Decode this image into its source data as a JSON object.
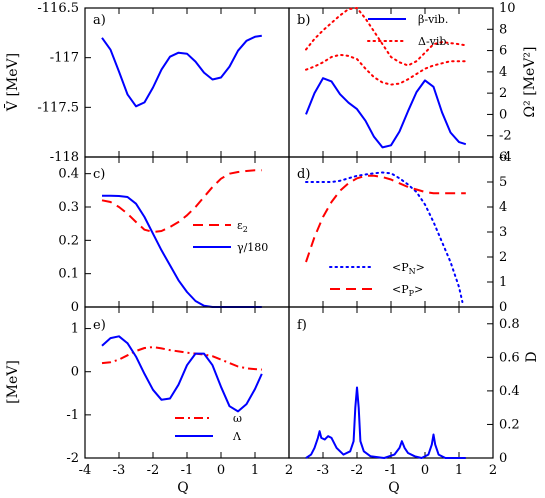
{
  "chart_data": [
    {
      "panel": "a)",
      "type": "line",
      "ylabel": "V̄ [MeV]",
      "xlim": [
        -4,
        2
      ],
      "ylim": [
        -118,
        -116.5
      ],
      "yticks": [
        "-116.5",
        "-117",
        "-117.5",
        "-118"
      ],
      "series": [
        {
          "name": "",
          "color": "#0000ff",
          "style": "solid",
          "x": [
            -3.5,
            -3.25,
            -3.0,
            -2.75,
            -2.5,
            -2.25,
            -2.0,
            -1.75,
            -1.5,
            -1.25,
            -1.0,
            -0.75,
            -0.5,
            -0.25,
            0.0,
            0.25,
            0.5,
            0.75,
            1.0,
            1.2
          ],
          "y": [
            -116.8,
            -116.92,
            -117.14,
            -117.37,
            -117.49,
            -117.45,
            -117.3,
            -117.12,
            -116.99,
            -116.95,
            -116.96,
            -117.04,
            -117.15,
            -117.22,
            -117.2,
            -117.09,
            -116.93,
            -116.83,
            -116.79,
            -116.78
          ]
        }
      ]
    },
    {
      "panel": "b)",
      "type": "line",
      "ylabel": "Ω² [MeV²]",
      "xlim": [
        -4,
        2
      ],
      "ylim": [
        -4,
        10
      ],
      "yticks": [
        "-4",
        "-2",
        "0",
        "2",
        "4",
        "6",
        "8",
        "10"
      ],
      "legend_position": "top-right",
      "series": [
        {
          "name": "β-vib.",
          "color": "#0000ff",
          "style": "solid",
          "x": [
            -3.5,
            -3.25,
            -3.0,
            -2.75,
            -2.5,
            -2.25,
            -2.0,
            -1.75,
            -1.5,
            -1.25,
            -1.0,
            -0.75,
            -0.5,
            -0.25,
            0.0,
            0.25,
            0.5,
            0.75,
            1.0,
            1.2
          ],
          "y": [
            0.0,
            2.0,
            3.4,
            3.1,
            1.9,
            1.1,
            0.5,
            -0.6,
            -2.1,
            -3.1,
            -2.9,
            -1.6,
            0.3,
            2.1,
            3.2,
            2.6,
            0.2,
            -1.7,
            -2.6,
            -2.8
          ]
        },
        {
          "name": "Δ-vib.",
          "color": "#ff0000",
          "style": "dotted",
          "x": [
            -3.5,
            -3.25,
            -3.0,
            -2.75,
            -2.5,
            -2.25,
            -2.0,
            -1.75,
            -1.5,
            -1.25,
            -1.0,
            -0.75,
            -0.5,
            -0.25,
            0.0,
            0.25,
            0.5,
            0.75,
            1.0,
            1.2
          ],
          "y": [
            6.1,
            7.1,
            7.9,
            8.6,
            9.3,
            9.9,
            10.0,
            9.0,
            7.8,
            6.6,
            5.4,
            4.9,
            4.6,
            5.0,
            5.8,
            6.6,
            6.8,
            6.7,
            6.6,
            6.5
          ]
        },
        {
          "name": "",
          "color": "#ff0000",
          "style": "dotted",
          "x": [
            -3.5,
            -3.25,
            -3.0,
            -2.75,
            -2.5,
            -2.25,
            -2.0,
            -1.75,
            -1.5,
            -1.25,
            -1.0,
            -0.75,
            -0.5,
            -0.25,
            0.0,
            0.25,
            0.5,
            0.75,
            1.0,
            1.2
          ],
          "y": [
            4.2,
            4.5,
            4.9,
            5.4,
            5.6,
            5.5,
            5.2,
            4.3,
            3.5,
            3.0,
            2.8,
            2.9,
            3.3,
            3.8,
            4.3,
            4.6,
            4.8,
            5.0,
            5.0,
            5.0
          ]
        }
      ]
    },
    {
      "panel": "c)",
      "type": "line",
      "xlim": [
        -4,
        2
      ],
      "ylim": [
        0,
        0.45
      ],
      "yticks": [
        "0",
        "0.1",
        "0.2",
        "0.3",
        "0.4"
      ],
      "legend_position": "right",
      "series": [
        {
          "name": "ε₂",
          "color": "#ff0000",
          "style": "dashed",
          "x": [
            -3.5,
            -3.25,
            -3.0,
            -2.75,
            -2.5,
            -2.25,
            -2.0,
            -1.75,
            -1.5,
            -1.25,
            -1.0,
            -0.75,
            -0.5,
            -0.25,
            0.0,
            0.25,
            0.5,
            0.75,
            1.0,
            1.2
          ],
          "y": [
            0.32,
            0.315,
            0.3,
            0.28,
            0.255,
            0.232,
            0.225,
            0.228,
            0.24,
            0.255,
            0.275,
            0.3,
            0.33,
            0.36,
            0.385,
            0.4,
            0.405,
            0.408,
            0.41,
            0.41
          ]
        },
        {
          "name": "γ/180",
          "color": "#0000ff",
          "style": "solid",
          "x": [
            -3.5,
            -3.25,
            -3.0,
            -2.75,
            -2.5,
            -2.25,
            -2.0,
            -1.75,
            -1.5,
            -1.25,
            -1.0,
            -0.75,
            -0.5,
            -0.25,
            0.0,
            0.25,
            0.5,
            0.75,
            1.0,
            1.2
          ],
          "y": [
            0.334,
            0.334,
            0.333,
            0.33,
            0.31,
            0.27,
            0.22,
            0.17,
            0.125,
            0.08,
            0.045,
            0.018,
            0.004,
            0.0,
            0.0,
            0.0,
            0.0,
            0.0,
            0.0,
            0.0
          ]
        }
      ]
    },
    {
      "panel": "d)",
      "type": "line",
      "xlim": [
        -4,
        2
      ],
      "ylim": [
        0,
        6
      ],
      "yticks": [
        "0",
        "1",
        "2",
        "3",
        "4",
        "5",
        "6"
      ],
      "legend_position": "bottom-left",
      "series": [
        {
          "name": "<P_N>",
          "color": "#0000ff",
          "style": "dotted",
          "x": [
            -3.5,
            -3.25,
            -3.0,
            -2.75,
            -2.5,
            -2.25,
            -2.0,
            -1.75,
            -1.5,
            -1.25,
            -1.0,
            -0.75,
            -0.5,
            -0.25,
            0.0,
            0.25,
            0.5,
            0.75,
            1.0,
            1.1
          ],
          "y": [
            5.0,
            5.0,
            5.0,
            5.0,
            5.05,
            5.15,
            5.25,
            5.3,
            5.35,
            5.38,
            5.35,
            5.15,
            4.9,
            4.6,
            4.1,
            3.4,
            2.6,
            1.8,
            0.8,
            0.2
          ]
        },
        {
          "name": "<P_P>",
          "color": "#ff0000",
          "style": "dashed",
          "x": [
            -3.5,
            -3.25,
            -3.0,
            -2.75,
            -2.5,
            -2.25,
            -2.0,
            -1.75,
            -1.5,
            -1.25,
            -1.0,
            -0.75,
            -0.5,
            -0.25,
            0.0,
            0.25,
            0.5,
            0.75,
            1.0,
            1.2
          ],
          "y": [
            1.8,
            2.8,
            3.6,
            4.2,
            4.65,
            4.95,
            5.15,
            5.25,
            5.25,
            5.2,
            5.1,
            4.95,
            4.8,
            4.7,
            4.6,
            4.55,
            4.55,
            4.55,
            4.55,
            4.55
          ]
        }
      ]
    },
    {
      "panel": "e)",
      "type": "line",
      "xlabel": "Q",
      "ylabel": "[MeV]",
      "xlim": [
        -4,
        2
      ],
      "ylim": [
        -2,
        1.5
      ],
      "yticks": [
        "1",
        "0",
        "-1",
        "-2"
      ],
      "xticks": [
        "-4",
        "-3",
        "-2",
        "-1",
        "0",
        "1",
        "2"
      ],
      "legend_position": "bottom-right",
      "series": [
        {
          "name": "ω",
          "color": "#ff0000",
          "style": "dashdot",
          "x": [
            -3.5,
            -3.25,
            -3.0,
            -2.75,
            -2.5,
            -2.25,
            -2.0,
            -1.75,
            -1.5,
            -1.25,
            -1.0,
            -0.75,
            -0.5,
            -0.25,
            0.0,
            0.25,
            0.5,
            0.75,
            1.0,
            1.2
          ],
          "y": [
            0.2,
            0.22,
            0.28,
            0.38,
            0.48,
            0.55,
            0.57,
            0.54,
            0.5,
            0.47,
            0.44,
            0.42,
            0.4,
            0.36,
            0.28,
            0.2,
            0.12,
            0.08,
            0.06,
            0.05
          ]
        },
        {
          "name": "Λ",
          "color": "#0000ff",
          "style": "solid",
          "x": [
            -3.5,
            -3.25,
            -3.0,
            -2.75,
            -2.5,
            -2.25,
            -2.0,
            -1.75,
            -1.5,
            -1.25,
            -1.0,
            -0.75,
            -0.5,
            -0.25,
            0.0,
            0.25,
            0.5,
            0.75,
            1.0,
            1.2
          ],
          "y": [
            0.6,
            0.78,
            0.82,
            0.66,
            0.35,
            -0.05,
            -0.42,
            -0.65,
            -0.62,
            -0.3,
            0.15,
            0.42,
            0.42,
            0.15,
            -0.35,
            -0.8,
            -0.92,
            -0.75,
            -0.4,
            -0.05
          ]
        }
      ]
    },
    {
      "panel": "f)",
      "type": "line",
      "xlabel": "Q",
      "ylabel": "D",
      "xlim": [
        -4,
        2
      ],
      "ylim": [
        0,
        0.9
      ],
      "yticks": [
        "0",
        "0.2",
        "0.4",
        "0.6",
        "0.8"
      ],
      "xticks": [
        "-3",
        "-2",
        "-1",
        "0",
        "1",
        "2"
      ],
      "series": [
        {
          "name": "",
          "color": "#0000ff",
          "style": "solid",
          "x": [
            -3.5,
            -3.35,
            -3.25,
            -3.15,
            -3.1,
            -3.05,
            -2.95,
            -2.85,
            -2.75,
            -2.6,
            -2.4,
            -2.2,
            -2.1,
            -2.05,
            -2.0,
            -1.95,
            -1.9,
            -1.8,
            -1.6,
            -1.2,
            -0.9,
            -0.75,
            -0.68,
            -0.6,
            -0.5,
            -0.3,
            -0.1,
            0.1,
            0.2,
            0.25,
            0.3,
            0.4,
            0.6,
            0.8,
            1.0,
            1.2
          ],
          "y": [
            0.0,
            0.02,
            0.06,
            0.12,
            0.16,
            0.12,
            0.11,
            0.13,
            0.12,
            0.06,
            0.02,
            0.04,
            0.1,
            0.3,
            0.42,
            0.3,
            0.1,
            0.04,
            0.01,
            0.0,
            0.02,
            0.06,
            0.1,
            0.06,
            0.03,
            0.01,
            0.0,
            0.02,
            0.08,
            0.14,
            0.08,
            0.02,
            0.0,
            0.0,
            0.0,
            0.0
          ]
        }
      ]
    }
  ],
  "labels": {
    "a": "a)",
    "b": "b)",
    "c": "c)",
    "d": "d)",
    "e": "e)",
    "f": "f)",
    "ylabel_left_top": "V̄ [MeV]",
    "ylabel_right_top": "Ω² [MeV²]",
    "ylabel_left_bottom": "[MeV]",
    "ylabel_right_bottom": "D",
    "xlabel": "Q"
  },
  "legends": {
    "b": [
      "β-vib.",
      "Δ-vib."
    ],
    "c_eps": "ε",
    "c_eps_sub": "2",
    "c_gamma": "γ/180",
    "d_pn": "<P",
    "d_pn_sub": "N",
    "d_pp": "<P",
    "d_pp_sub": "P",
    "close": ">",
    "e": [
      "ω",
      "Λ"
    ]
  }
}
